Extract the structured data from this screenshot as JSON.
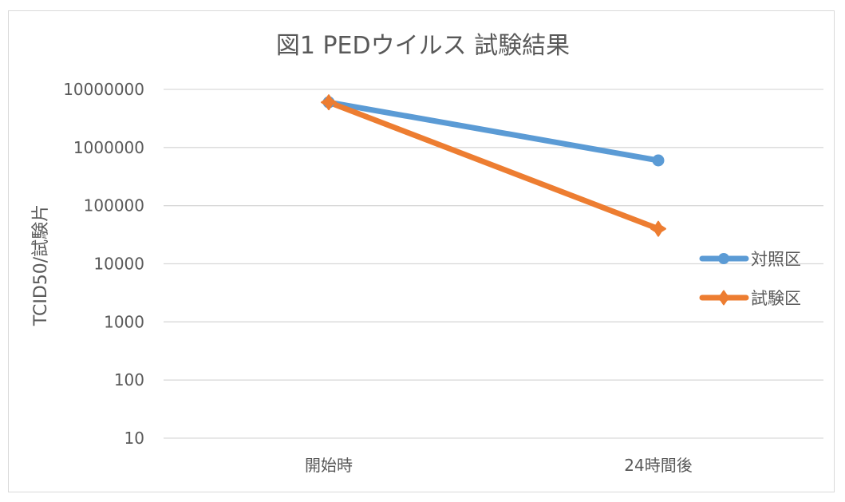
{
  "chart_data": {
    "type": "line",
    "title": "図1  PEDウイルス  試験結果",
    "xlabel": "",
    "ylabel": "TCID50/試験片",
    "y_scale": "log",
    "ylim": [
      10,
      10000000
    ],
    "grid": true,
    "legend_position": "right",
    "categories": [
      "開始時",
      "24時間後"
    ],
    "y_ticks": [
      10,
      100,
      1000,
      10000,
      100000,
      1000000,
      10000000
    ],
    "y_tick_labels": [
      "10",
      "100",
      "1000",
      "10000",
      "100000",
      "1000000",
      "10000000"
    ],
    "series": [
      {
        "name": "対照区",
        "values": [
          6000000,
          600000
        ],
        "color": "#5B9BD5",
        "marker": "circle"
      },
      {
        "name": "試験区",
        "values": [
          6000000,
          40000
        ],
        "color": "#ED7D31",
        "marker": "star"
      }
    ]
  }
}
